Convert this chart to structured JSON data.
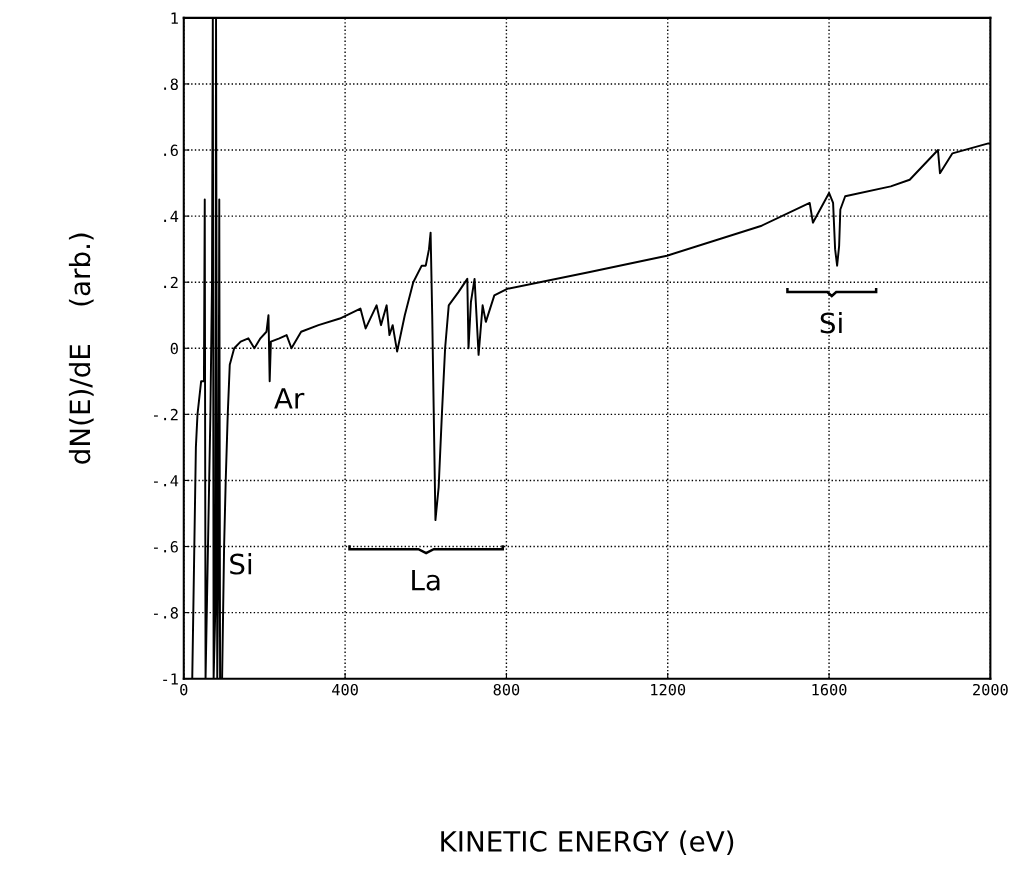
{
  "chart_data": {
    "type": "line",
    "xlabel": "KINETIC ENERGY (eV)",
    "ylabel": "dN(E)/dE    (arb.)",
    "series": [
      {
        "color": "#000000",
        "x": [
          21,
          30,
          34,
          43,
          50,
          52,
          54,
          60,
          66,
          70,
          72,
          74,
          78,
          80,
          83,
          86,
          88,
          90,
          95,
          100,
          104,
          109,
          114,
          125,
          141,
          160,
          175,
          190,
          205,
          210,
          213,
          216,
          237,
          255,
          267,
          291,
          334,
          387,
          438,
          451,
          478,
          489,
          503,
          510,
          518,
          529,
          548,
          569,
          590,
          600,
          608,
          612,
          616,
          624,
          632,
          640,
          648,
          657,
          681,
          703,
          706,
          712,
          721,
          731,
          741,
          749,
          770,
          802,
          1004,
          1198,
          1431,
          1552,
          1560,
          1600,
          1610,
          1615,
          1620,
          1625,
          1628,
          1640,
          1753,
          1800,
          1870,
          1875,
          1906,
          1995,
          2000
        ],
        "values": [
          -1,
          -0.3,
          -0.2,
          -0.1,
          -0.1,
          0.45,
          -1,
          -0.6,
          -0.2,
          0.2,
          1,
          -1,
          -0.8,
          1,
          -1,
          -0.6,
          0.45,
          -1,
          -1,
          -0.6,
          -0.4,
          -0.2,
          -0.05,
          0,
          0.02,
          0.03,
          0.0,
          0.03,
          0.05,
          0.1,
          -0.1,
          0.02,
          0.03,
          0.04,
          0.0,
          0.05,
          0.07,
          0.09,
          0.12,
          0.06,
          0.13,
          0.07,
          0.13,
          0.04,
          0.07,
          -0.01,
          0.1,
          0.2,
          0.25,
          0.25,
          0.3,
          0.35,
          0.1,
          -0.52,
          -0.42,
          -0.2,
          0.0,
          0.13,
          0.17,
          0.21,
          0.0,
          0.14,
          0.21,
          -0.02,
          0.13,
          0.08,
          0.16,
          0.18,
          0.23,
          0.28,
          0.37,
          0.44,
          0.38,
          0.47,
          0.44,
          0.3,
          0.25,
          0.31,
          0.42,
          0.46,
          0.49,
          0.51,
          0.6,
          0.53,
          0.59,
          0.62,
          0.62
        ]
      }
    ],
    "xlim": [
      0,
      2000
    ],
    "xticks": [
      0,
      400,
      800,
      1200,
      1600,
      2000
    ],
    "ylim": [
      -1,
      1
    ],
    "yticks": [
      {
        "value": -1,
        "label": "-1"
      },
      {
        "value": -0.8,
        "label": "-.8"
      },
      {
        "value": -0.6,
        "label": "-.6"
      },
      {
        "value": -0.4,
        "label": "-.4"
      },
      {
        "value": -0.2,
        "label": "-.2"
      },
      0,
      {
        "value": 0.2,
        "label": ".2"
      },
      {
        "value": 0.4,
        "label": ".4"
      },
      {
        "value": 0.6,
        "label": ".6"
      },
      {
        "value": 0.8,
        "label": ".8"
      },
      1
    ],
    "grid": true,
    "line_style": "solid",
    "marker": "none",
    "legend": false,
    "annotations": [
      {
        "text": "Ar",
        "x": 213,
        "y": -0.1
      },
      {
        "text": "Si",
        "x": 104,
        "y": -0.4
      },
      {
        "text": "La",
        "x": 624,
        "y": -0.52
      },
      {
        "text": "Si",
        "x": 1620,
        "y": 0.25
      }
    ]
  }
}
